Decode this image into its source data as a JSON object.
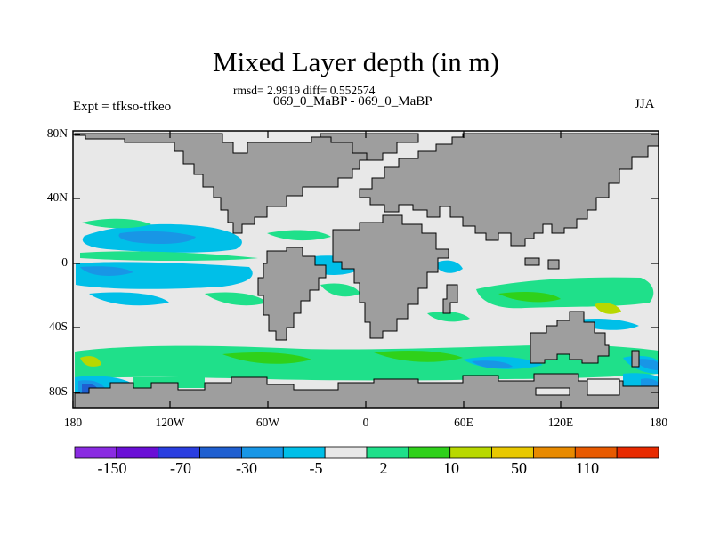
{
  "title": "Mixed Layer depth (in m)",
  "stats": "rmsd= 2.9919 diff= 0.552574",
  "experiments": "069_0_MaBP - 069_0_MaBP",
  "left_label": "Expt = tfkso-tfkeo",
  "right_label": "JJA",
  "y_ticks": [
    "80N",
    "40N",
    "0",
    "40S",
    "80S"
  ],
  "x_ticks": [
    "180",
    "120W",
    "60W",
    "0",
    "60E",
    "120E",
    "180"
  ],
  "colorbar": {
    "colors": [
      "#8a2be2",
      "#6a0fd6",
      "#2a3ee0",
      "#1f5fd0",
      "#1896e6",
      "#00bfe8",
      "#e8e8e8",
      "#1fe08a",
      "#2fd11a",
      "#b8d800",
      "#e8c800",
      "#e88a00",
      "#e85a00",
      "#e82a00"
    ],
    "labels": [
      "-150",
      "-70",
      "-30",
      "-5",
      "2",
      "10",
      "50",
      "110"
    ]
  },
  "map_colors": {
    "ocean": "#e8e8e8",
    "land": "#9e9e9e",
    "positive_small": "#1fe08a",
    "positive_mid": "#2fd11a",
    "positive_high": "#b8d800",
    "negative_small": "#00bfe8",
    "negative_mid": "#1896e6",
    "negative_high": "#1f5fd0"
  }
}
